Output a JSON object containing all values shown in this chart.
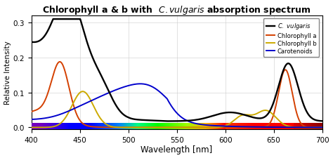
{
  "title": "Chlorophyll a & b with  $\\it{C. vulgaris}$ absorption spectrum",
  "xlabel": "Wavelength [nm]",
  "ylabel": "Relative Intensity",
  "xlim": [
    400,
    700
  ],
  "ylim": [
    0,
    0.32
  ],
  "yticks": [
    0,
    0.1,
    0.2,
    0.3
  ],
  "xticks": [
    400,
    450,
    500,
    550,
    600,
    650,
    700
  ],
  "colors": {
    "c_vulgaris": "#000000",
    "chl_a": "#d44000",
    "chl_b": "#ccaa00",
    "carotenoids": "#0000cc"
  },
  "background_color": "#ffffff",
  "grid_color": "#cccccc"
}
